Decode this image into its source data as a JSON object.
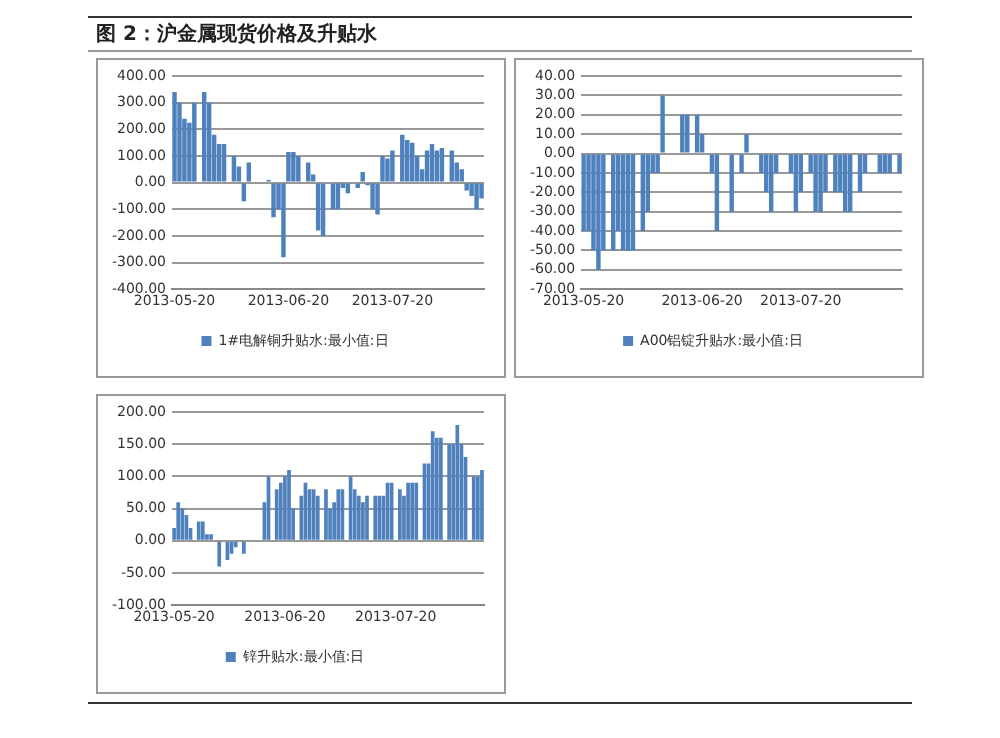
{
  "chart_data": [
    {
      "type": "bar",
      "title": "图 2：沪金属现货价格及升贴水",
      "categories": [
        "2013-05-20",
        null,
        null,
        null,
        null,
        null,
        null,
        null,
        null,
        null,
        null,
        null,
        null,
        null,
        null,
        null,
        null,
        null,
        null,
        null,
        null,
        null,
        null,
        "2013-06-20",
        null,
        null,
        null,
        null,
        null,
        null,
        null,
        null,
        null,
        null,
        null,
        null,
        null,
        null,
        null,
        null,
        null,
        null,
        null,
        null,
        "2013-07-20",
        null,
        null,
        null,
        null,
        null,
        null,
        null,
        null,
        null,
        null,
        null,
        null,
        null,
        null,
        null,
        null,
        null,
        null
      ],
      "series": [
        {
          "name": "1#电解铜升贴水:最小值:日",
          "color": "#4f81bd",
          "values": [
            340,
            300,
            240,
            225,
            300,
            0,
            340,
            300,
            180,
            145,
            145,
            0,
            100,
            60,
            -70,
            75,
            0,
            0,
            0,
            10,
            -130,
            -100,
            -280,
            115,
            115,
            100,
            0,
            75,
            30,
            -180,
            -200,
            0,
            -100,
            -100,
            -20,
            -40,
            0,
            -20,
            40,
            -10,
            -100,
            -120,
            100,
            90,
            120,
            0,
            180,
            160,
            150,
            100,
            50,
            120,
            145,
            120,
            130,
            0,
            120,
            75,
            50,
            -30,
            -50,
            -100,
            -60
          ]
        }
      ],
      "ylim": [
        -400,
        400
      ],
      "yticks": [
        {
          "value": -400,
          "label": "-400.00"
        },
        {
          "value": -300,
          "label": "-300.00"
        },
        {
          "value": -200,
          "label": "-200.00"
        },
        {
          "value": -100,
          "label": "-100.00"
        },
        {
          "value": 0,
          "label": "0.00"
        },
        {
          "value": 100,
          "label": "100.00"
        },
        {
          "value": 200,
          "label": "200.00"
        },
        {
          "value": 300,
          "label": "300.00"
        },
        {
          "value": 400,
          "label": "400.00"
        }
      ],
      "grid": "y",
      "legend": "bottom"
    },
    {
      "type": "bar",
      "categories": [
        "2013-05-20",
        null,
        null,
        null,
        null,
        null,
        null,
        null,
        null,
        null,
        null,
        null,
        null,
        null,
        null,
        null,
        null,
        null,
        null,
        null,
        null,
        null,
        null,
        null,
        "2013-06-20",
        null,
        null,
        null,
        null,
        null,
        null,
        null,
        null,
        null,
        null,
        null,
        null,
        null,
        null,
        null,
        null,
        null,
        null,
        null,
        "2013-07-20",
        null,
        null,
        null,
        null,
        null,
        null,
        null,
        null,
        null,
        null,
        null,
        null,
        null,
        null,
        null,
        null,
        null,
        null,
        null,
        null
      ],
      "series": [
        {
          "name": "A00铝锭升贴水:最小值:日",
          "color": "#4f81bd",
          "values": [
            -40,
            -40,
            -50,
            -60,
            -50,
            0,
            -50,
            -40,
            -50,
            -50,
            -50,
            0,
            -40,
            -30,
            -10,
            -10,
            30,
            0,
            0,
            0,
            20,
            20,
            0,
            20,
            10,
            0,
            -10,
            -40,
            0,
            0,
            -30,
            0,
            -10,
            10,
            0,
            0,
            -10,
            -20,
            -30,
            -10,
            0,
            0,
            -10,
            -30,
            -20,
            0,
            -10,
            -30,
            -30,
            -20,
            0,
            -20,
            -20,
            -30,
            -30,
            0,
            -20,
            -10,
            0,
            0,
            -10,
            -10,
            -10,
            0,
            -10
          ]
        }
      ],
      "ylim": [
        -70,
        40
      ],
      "yticks": [
        {
          "value": -70,
          "label": "-70.00"
        },
        {
          "value": -60,
          "label": "-60.00"
        },
        {
          "value": -50,
          "label": "-50.00"
        },
        {
          "value": -40,
          "label": "-40.00"
        },
        {
          "value": -30,
          "label": "-30.00"
        },
        {
          "value": -20,
          "label": "-20.00"
        },
        {
          "value": -10,
          "label": "-10.00"
        },
        {
          "value": 0,
          "label": "0.00"
        },
        {
          "value": 10,
          "label": "10.00"
        },
        {
          "value": 20,
          "label": "20.00"
        },
        {
          "value": 30,
          "label": "30.00"
        },
        {
          "value": 40,
          "label": "40.00"
        }
      ],
      "grid": "y",
      "legend": "bottom"
    },
    {
      "type": "bar",
      "categories": [
        "2013-05-20",
        null,
        null,
        null,
        null,
        null,
        null,
        null,
        null,
        null,
        null,
        null,
        null,
        null,
        null,
        null,
        null,
        null,
        null,
        null,
        null,
        null,
        null,
        null,
        null,
        null,
        null,
        "2013-06-20",
        null,
        null,
        null,
        null,
        null,
        null,
        null,
        null,
        null,
        null,
        null,
        null,
        null,
        null,
        null,
        null,
        null,
        null,
        null,
        null,
        null,
        null,
        null,
        null,
        null,
        null,
        "2013-07-20",
        null,
        null,
        null,
        null,
        null,
        null,
        null,
        null,
        null,
        null,
        null,
        null,
        null,
        null,
        null,
        null,
        null,
        null,
        null,
        null,
        null
      ],
      "series": [
        {
          "name": "锌升贴水:最小值:日",
          "color": "#4f81bd",
          "values": [
            20,
            60,
            50,
            40,
            20,
            0,
            30,
            30,
            10,
            10,
            0,
            -40,
            0,
            -30,
            -20,
            -10,
            0,
            -20,
            0,
            0,
            0,
            0,
            60,
            100,
            0,
            80,
            90,
            100,
            110,
            50,
            0,
            70,
            90,
            80,
            80,
            70,
            0,
            80,
            50,
            60,
            80,
            80,
            0,
            100,
            80,
            70,
            60,
            70,
            0,
            70,
            70,
            70,
            90,
            90,
            0,
            80,
            70,
            90,
            90,
            90,
            0,
            120,
            120,
            170,
            160,
            160,
            0,
            150,
            150,
            180,
            150,
            130,
            0,
            100,
            100,
            110
          ]
        }
      ],
      "ylim": [
        -100,
        200
      ],
      "yticks": [
        {
          "value": -100,
          "label": "-100.00"
        },
        {
          "value": -50,
          "label": "-50.00"
        },
        {
          "value": 0,
          "label": "0.00"
        },
        {
          "value": 50,
          "label": "50.00"
        },
        {
          "value": 100,
          "label": "100.00"
        },
        {
          "value": 150,
          "label": "150.00"
        },
        {
          "value": 200,
          "label": "200.00"
        }
      ],
      "grid": "y",
      "legend": "bottom"
    }
  ]
}
